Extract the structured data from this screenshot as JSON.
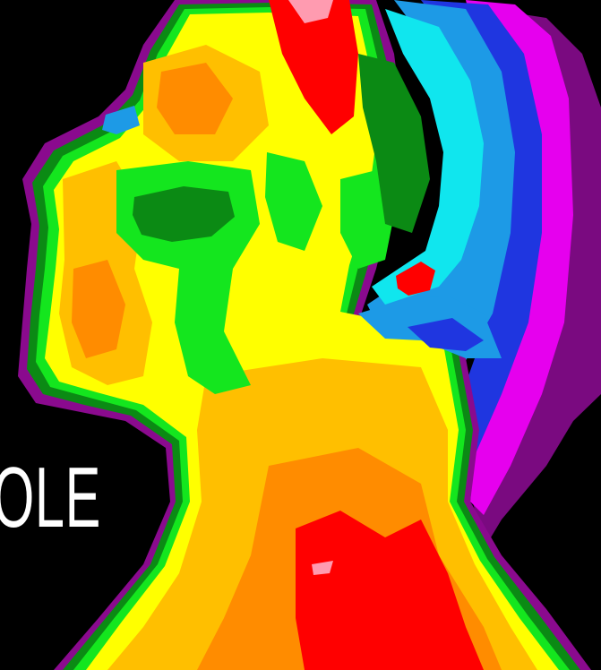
{
  "image": {
    "subject": "thermal-profile-head",
    "background_color": "#000000",
    "palette": {
      "purple": "#8a0a8e",
      "magenta": "#e600ee",
      "blue": "#1f36e0",
      "light_blue": "#1d9ae6",
      "cyan": "#10e6ee",
      "dark_green": "#0b8a14",
      "green": "#14e61e",
      "yellow": "#ffff00",
      "amber": "#ffbf00",
      "orange": "#ff8c00",
      "red": "#ff0000",
      "pink": "#ff9bb0"
    }
  },
  "caption": {
    "text": "OLE",
    "color": "#ffffff"
  }
}
